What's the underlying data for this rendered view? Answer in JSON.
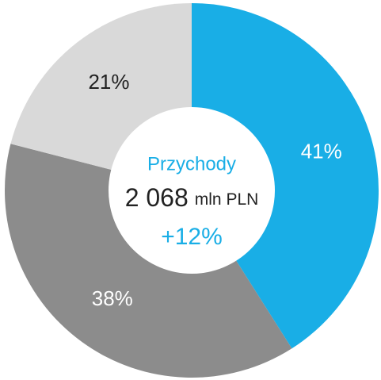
{
  "chart_data": {
    "type": "donut",
    "categories": [
      null,
      null,
      null
    ],
    "series": [
      {
        "name": null,
        "values": [
          41,
          38,
          21
        ],
        "value_labels": [
          "41%",
          "38%",
          "21%"
        ],
        "colors": [
          "#19aee6",
          "#8c8c8c",
          "#d9d9d9"
        ]
      }
    ],
    "center": {
      "title": "Przychody",
      "value": "2 068",
      "unit": "mln PLN",
      "change": "+12%"
    }
  }
}
